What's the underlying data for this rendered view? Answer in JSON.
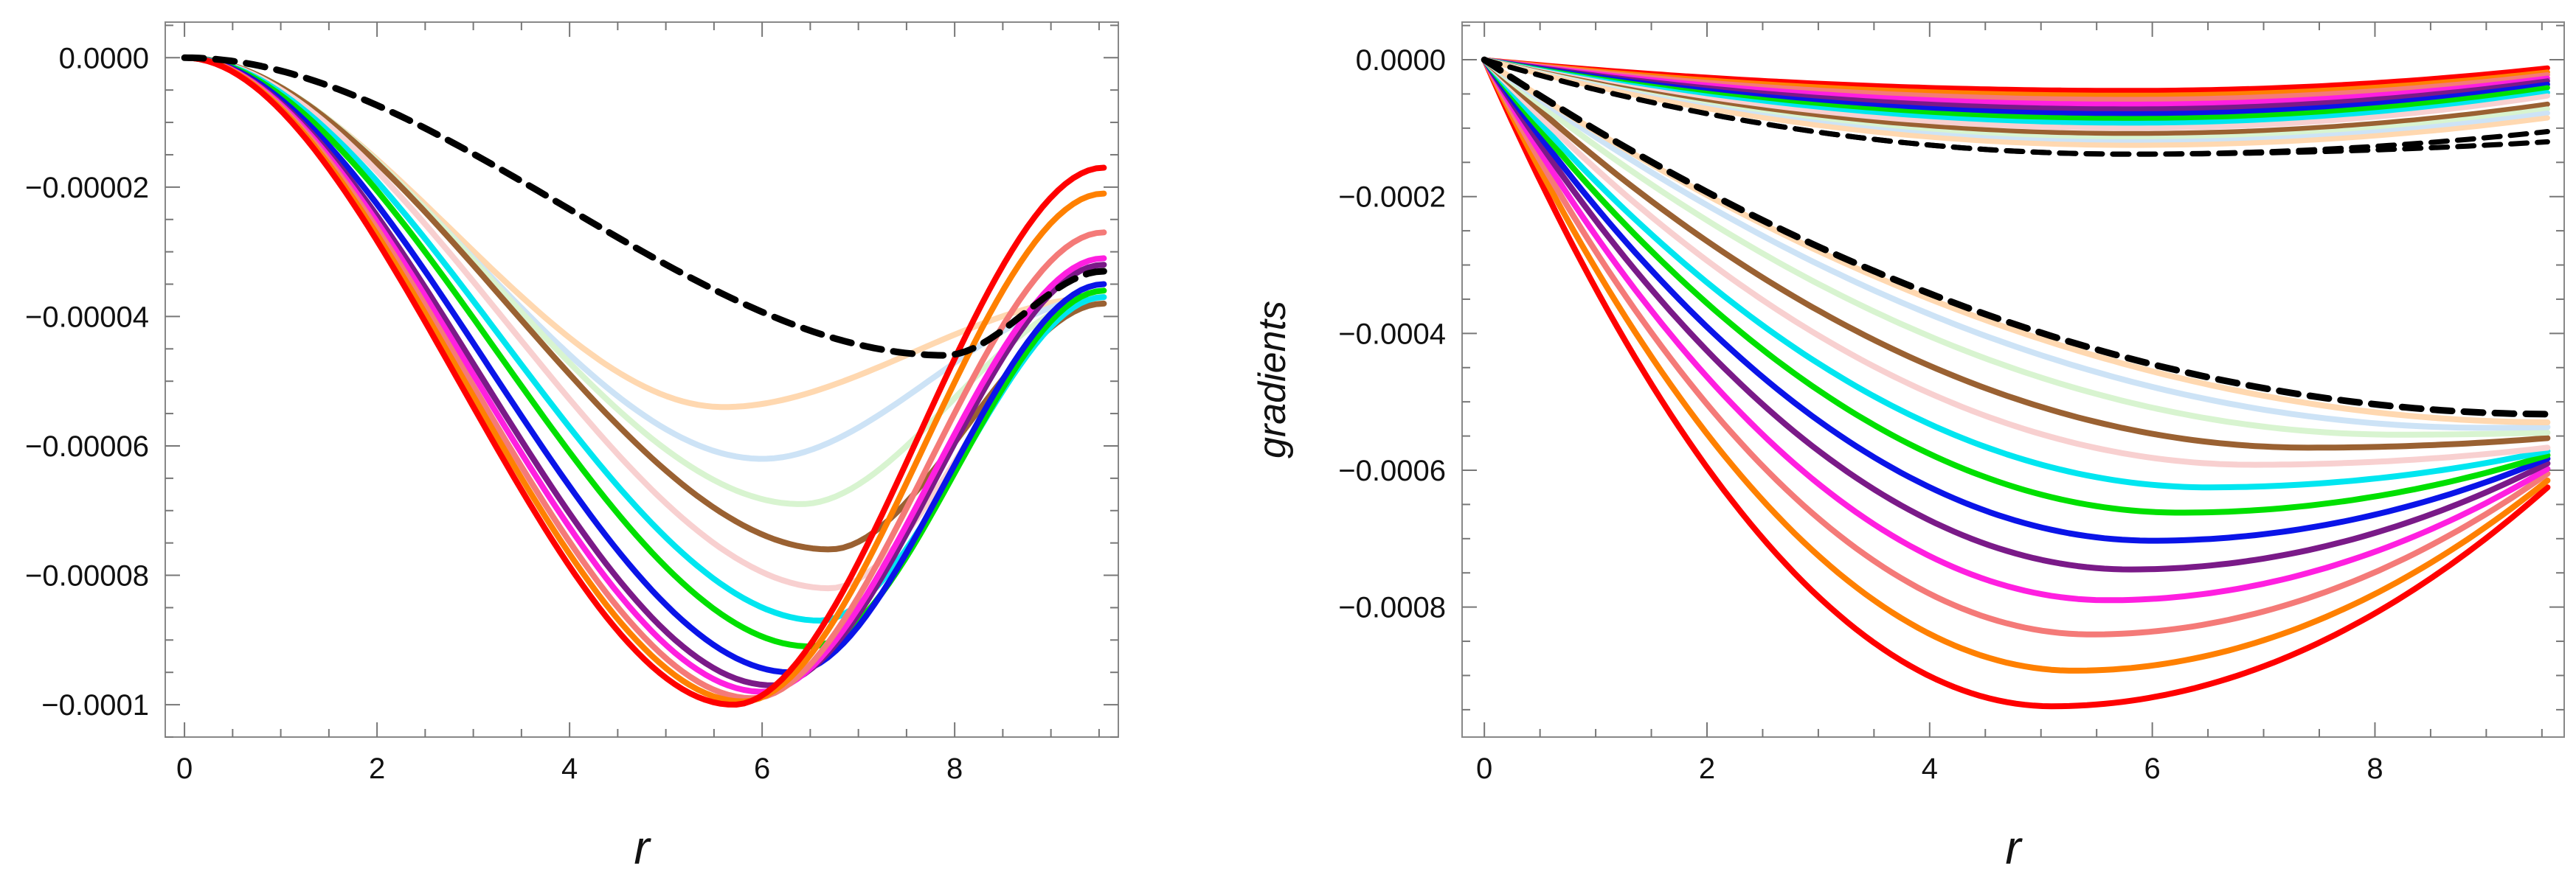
{
  "chart_data": [
    {
      "type": "line",
      "panel": "left",
      "xlabel": "r",
      "ylabel": "",
      "xlim": [
        -0.2,
        9.7
      ],
      "ylim": [
        -0.000105,
        5.5e-06
      ],
      "xticks": [
        0,
        2,
        4,
        6,
        8
      ],
      "xtick_labels": [
        "0",
        "2",
        "4",
        "6",
        "8"
      ],
      "yticks": [
        0,
        -2e-05,
        -4e-05,
        -6e-05,
        -8e-05,
        -0.0001
      ],
      "ytick_labels": [
        "0.0000",
        "-0.00002",
        "-0.00004",
        "-0.00006",
        "-0.00008",
        "-0.0001"
      ],
      "grid": false,
      "series": [
        {
          "name": "peach",
          "color": "#ffd8b0",
          "dash": "solid",
          "xmin": 5.6,
          "ymin": -5.4e-05,
          "yend": -3.7e-05
        },
        {
          "name": "light-blue",
          "color": "#cde3f6",
          "dash": "solid",
          "xmin": 6.0,
          "ymin": -6.2e-05,
          "yend": -3.7e-05
        },
        {
          "name": "light-green",
          "color": "#d8f4d0",
          "dash": "solid",
          "xmin": 6.4,
          "ymin": -6.9e-05,
          "yend": -3.7e-05
        },
        {
          "name": "brown",
          "color": "#9a6132",
          "dash": "solid",
          "xmin": 6.7,
          "ymin": -7.6e-05,
          "yend": -3.8e-05
        },
        {
          "name": "light-pink",
          "color": "#f8d0d0",
          "dash": "solid",
          "xmin": 6.7,
          "ymin": -8.2e-05,
          "yend": -3.7e-05
        },
        {
          "name": "cyan",
          "color": "#00e6f0",
          "dash": "solid",
          "xmin": 6.6,
          "ymin": -8.7e-05,
          "yend": -3.7e-05
        },
        {
          "name": "green",
          "color": "#00e000",
          "dash": "solid",
          "xmin": 6.5,
          "ymin": -9.1e-05,
          "yend": -3.6e-05
        },
        {
          "name": "blue",
          "color": "#0a14e8",
          "dash": "solid",
          "xmin": 6.3,
          "ymin": -9.5e-05,
          "yend": -3.5e-05
        },
        {
          "name": "purple",
          "color": "#7a1a88",
          "dash": "solid",
          "xmin": 6.1,
          "ymin": -9.7e-05,
          "yend": -3.2e-05
        },
        {
          "name": "magenta",
          "color": "#ff1fe0",
          "dash": "solid",
          "xmin": 6.0,
          "ymin": -9.8e-05,
          "yend": -3.1e-05
        },
        {
          "name": "salmon",
          "color": "#f47a78",
          "dash": "solid",
          "xmin": 5.9,
          "ymin": -9.9e-05,
          "yend": -2.7e-05
        },
        {
          "name": "orange",
          "color": "#ff8000",
          "dash": "solid",
          "xmin": 5.8,
          "ymin": -9.95e-05,
          "yend": -2.1e-05
        },
        {
          "name": "red",
          "color": "#ff0000",
          "dash": "solid",
          "xmin": 5.7,
          "ymin": -0.0001,
          "yend": -1.7e-05
        },
        {
          "name": "black-dashed",
          "color": "#000000",
          "dash": "dashed",
          "xmin": 7.9,
          "ymin": -4.6e-05,
          "yend": -3.3e-05
        }
      ]
    },
    {
      "type": "line",
      "panel": "right",
      "xlabel": "r",
      "ylabel": "gradients",
      "xlim": [
        -0.2,
        9.7
      ],
      "ylim": [
        -0.00099,
        5.5e-05
      ],
      "xticks": [
        0,
        2,
        4,
        6,
        8
      ],
      "xtick_labels": [
        "0",
        "2",
        "4",
        "6",
        "8"
      ],
      "yticks": [
        0,
        -0.0002,
        -0.0004,
        -0.0006,
        -0.0008
      ],
      "ytick_labels": [
        "0.0000",
        "-0.0002",
        "-0.0004",
        "-0.0006",
        "-0.0008"
      ],
      "grid": false,
      "series": [
        {
          "name": "red",
          "color": "#ff0000",
          "dash": "solid",
          "xmin": 5.1,
          "ymin": -0.000945,
          "yend": -0.000625,
          "ymin_upper": -4.5e-05,
          "yend_upper": -1.2e-05
        },
        {
          "name": "orange",
          "color": "#ff8000",
          "dash": "solid",
          "xmin": 5.3,
          "ymin": -0.000893,
          "yend": -0.000615,
          "ymin_upper": -5.2e-05,
          "yend_upper": -1.8e-05
        },
        {
          "name": "salmon",
          "color": "#f47a78",
          "dash": "solid",
          "xmin": 5.45,
          "ymin": -0.00084,
          "yend": -0.000605,
          "ymin_upper": -5.8e-05,
          "yend_upper": -2.2e-05
        },
        {
          "name": "magenta",
          "color": "#ff1fe0",
          "dash": "solid",
          "xmin": 5.6,
          "ymin": -0.00079,
          "yend": -0.000598,
          "ymin_upper": -6.5e-05,
          "yend_upper": -2.7e-05
        },
        {
          "name": "purple",
          "color": "#7a1a88",
          "dash": "solid",
          "xmin": 5.8,
          "ymin": -0.000745,
          "yend": -0.00059,
          "ymin_upper": -7.2e-05,
          "yend_upper": -3.1e-05
        },
        {
          "name": "blue",
          "color": "#0a14e8",
          "dash": "solid",
          "xmin": 6.0,
          "ymin": -0.000703,
          "yend": -0.000583,
          "ymin_upper": -7.9e-05,
          "yend_upper": -3.6e-05
        },
        {
          "name": "green",
          "color": "#00e000",
          "dash": "solid",
          "xmin": 6.25,
          "ymin": -0.000662,
          "yend": -0.000578,
          "ymin_upper": -8.6e-05,
          "yend_upper": -4.1e-05
        },
        {
          "name": "cyan",
          "color": "#00e6f0",
          "dash": "solid",
          "xmin": 6.5,
          "ymin": -0.000625,
          "yend": -0.000572,
          "ymin_upper": -9.3e-05,
          "yend_upper": -4.8e-05
        },
        {
          "name": "light-pink",
          "color": "#f8d0d0",
          "dash": "solid",
          "xmin": 6.9,
          "ymin": -0.000592,
          "yend": -0.000567,
          "ymin_upper": -0.0001,
          "yend_upper": -5.3e-05
        },
        {
          "name": "brown",
          "color": "#9a6132",
          "dash": "solid",
          "xmin": 7.4,
          "ymin": -0.000567,
          "yend": -0.000553,
          "ymin_upper": -0.000108,
          "yend_upper": -6.5e-05
        },
        {
          "name": "light-green",
          "color": "#d8f4d0",
          "dash": "solid",
          "xmin": 8.2,
          "ymin": -0.000548,
          "yend": -0.000545,
          "ymin_upper": -0.000115,
          "yend_upper": -7.2e-05
        },
        {
          "name": "light-blue",
          "color": "#cde3f6",
          "dash": "solid",
          "xmin": 9.0,
          "ymin": -0.000538,
          "yend": -0.000537,
          "ymin_upper": -0.00012,
          "yend_upper": -7.8e-05
        },
        {
          "name": "peach",
          "color": "#ffd8b0",
          "dash": "solid",
          "xmin": 9.6,
          "ymin": -0.00053,
          "yend": -0.00053,
          "ymin_upper": -0.000125,
          "yend_upper": -8.5e-05
        },
        {
          "name": "black-dashed",
          "color": "#000000",
          "dash": "dashed",
          "xmin": 9.6,
          "ymin": -0.000518,
          "yend": -0.000518,
          "ymin_upper": -0.000138,
          "yend_upper": -0.000105,
          "yend_upper2": -0.00012
        }
      ]
    }
  ]
}
